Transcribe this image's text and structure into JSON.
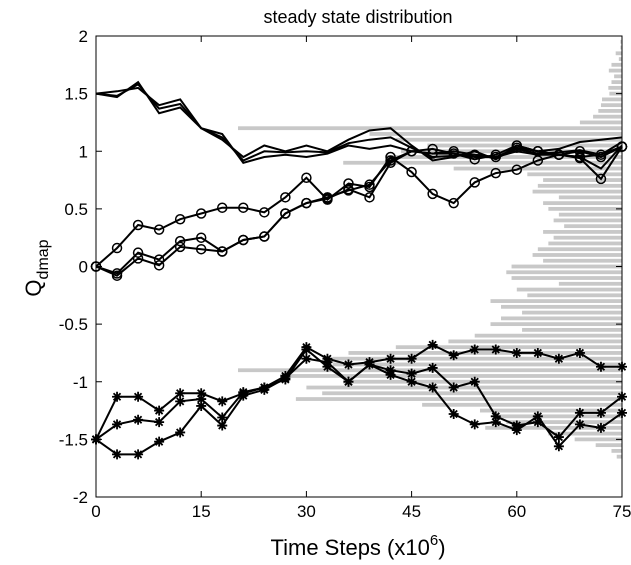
{
  "chart_data": {
    "type": "line",
    "title": "steady state distribution",
    "xlabel": {
      "base": "Time Steps (x10",
      "sup": "6",
      "tail": ")"
    },
    "ylabel": {
      "base": "Q",
      "sub": "dmap"
    },
    "xlim": [
      0,
      75
    ],
    "ylim": [
      -2,
      2
    ],
    "xticks": [
      0,
      15,
      30,
      45,
      60,
      75
    ],
    "yticks": [
      2,
      1.5,
      1,
      0.5,
      0,
      -0.5,
      -1,
      -1.5,
      -2
    ],
    "ytick_labels": [
      "2",
      "1.5",
      "1",
      "0.5",
      "0",
      "-0.5",
      "-1",
      "-1.5",
      "-2"
    ],
    "grid": false,
    "histogram": {
      "orientation": "horizontal",
      "color": "#c8c8c8",
      "y": [
        1.95,
        1.9,
        1.85,
        1.8,
        1.75,
        1.7,
        1.65,
        1.6,
        1.55,
        1.5,
        1.45,
        1.4,
        1.35,
        1.3,
        1.25,
        1.2,
        1.15,
        1.1,
        1.05,
        1.0,
        0.95,
        0.9,
        0.85,
        0.8,
        0.75,
        0.7,
        0.65,
        0.6,
        0.55,
        0.5,
        0.45,
        0.4,
        0.35,
        0.3,
        0.25,
        0.2,
        0.15,
        0.1,
        0.05,
        0.0,
        -0.05,
        -0.1,
        -0.15,
        -0.2,
        -0.25,
        -0.3,
        -0.35,
        -0.4,
        -0.45,
        -0.5,
        -0.55,
        -0.6,
        -0.65,
        -0.7,
        -0.75,
        -0.8,
        -0.85,
        -0.9,
        -0.95,
        -1.0,
        -1.05,
        -1.1,
        -1.15,
        -1.2,
        -1.25,
        -1.3,
        -1.35,
        -1.4,
        -1.45,
        -1.5,
        -1.55,
        -1.6,
        -1.65
      ],
      "counts": [
        0.3,
        0.3,
        1.2,
        0.6,
        2,
        2.5,
        1.5,
        2,
        2.6,
        2.4,
        3.8,
        4,
        4.5,
        5.5,
        8,
        73,
        48,
        43,
        37,
        42,
        45,
        53,
        32,
        18,
        15,
        16,
        17,
        12,
        15,
        14,
        12,
        13,
        11,
        15,
        13,
        14,
        16,
        17,
        15,
        21,
        22,
        21,
        12,
        20,
        18,
        25,
        23,
        19,
        23,
        25,
        19,
        28,
        33,
        43,
        52,
        55,
        55,
        73,
        65,
        53,
        60,
        57,
        62,
        38,
        27,
        24,
        22,
        26,
        14,
        9,
        5,
        2,
        1
      ]
    },
    "series": [
      {
        "marker": "none",
        "x": [
          0,
          3,
          6,
          9,
          12,
          15,
          18,
          21,
          24,
          27,
          30,
          33,
          36,
          39,
          42,
          45,
          48,
          51,
          54,
          57,
          60,
          63,
          66,
          69,
          72,
          75
        ],
        "y": [
          1.5,
          1.47,
          1.6,
          1.33,
          1.38,
          1.2,
          1.15,
          0.9,
          0.95,
          0.97,
          0.95,
          0.98,
          1.05,
          1.02,
          1.05,
          1.0,
          0.98,
          0.98,
          0.95,
          0.95,
          1.0,
          0.97,
          0.97,
          0.95,
          0.85,
          1.05
        ]
      },
      {
        "marker": "none",
        "x": [
          0,
          3,
          6,
          9,
          12,
          15,
          18,
          21,
          24,
          27,
          30,
          33,
          36,
          39,
          42,
          45,
          48,
          51,
          54,
          57,
          60,
          63,
          66,
          69,
          72,
          75
        ],
        "y": [
          1.5,
          1.52,
          1.55,
          1.4,
          1.45,
          1.2,
          1.1,
          0.95,
          1.05,
          1.0,
          1.05,
          1.0,
          1.1,
          1.18,
          1.2,
          1.05,
          0.92,
          0.95,
          1.0,
          0.93,
          1.05,
          1.0,
          1.02,
          1.08,
          1.1,
          1.12
        ]
      },
      {
        "marker": "none",
        "x": [
          0,
          3,
          6,
          9,
          12,
          15,
          18,
          21,
          24,
          27,
          30,
          33,
          36,
          39,
          42,
          45,
          48,
          51,
          54,
          57,
          60,
          63,
          66,
          69,
          72,
          75
        ],
        "y": [
          1.5,
          1.48,
          1.58,
          1.37,
          1.41,
          1.2,
          1.12,
          0.92,
          1.0,
          0.99,
          1.0,
          0.99,
          1.07,
          1.1,
          1.12,
          1.03,
          0.95,
          0.96,
          0.97,
          0.94,
          1.02,
          0.98,
          0.99,
          1.01,
          0.97,
          1.08
        ]
      },
      {
        "marker": "circle",
        "x": [
          0,
          3,
          6,
          9,
          12,
          15,
          18,
          21,
          24,
          27,
          30,
          33,
          36,
          39,
          42,
          45,
          48,
          51,
          54,
          57,
          60,
          63,
          66,
          69,
          72,
          75
        ],
        "y": [
          0.0,
          0.16,
          0.36,
          0.32,
          0.41,
          0.46,
          0.51,
          0.51,
          0.47,
          0.6,
          0.77,
          0.58,
          0.72,
          0.69,
          0.95,
          0.82,
          0.63,
          0.55,
          0.73,
          0.81,
          0.84,
          0.92,
          0.97,
          0.94,
          0.76,
          1.04
        ]
      },
      {
        "marker": "circle",
        "x": [
          0,
          3,
          6,
          9,
          12,
          15,
          18,
          21,
          24,
          27,
          30,
          33,
          36,
          39,
          42,
          45,
          48,
          51,
          54,
          57,
          60,
          63,
          66,
          69,
          72,
          75
        ],
        "y": [
          0.0,
          -0.06,
          0.12,
          0.06,
          0.22,
          0.25,
          0.13,
          0.23,
          0.26,
          0.46,
          0.55,
          0.6,
          0.66,
          0.71,
          0.92,
          1.0,
          0.98,
          1.0,
          0.97,
          0.95,
          1.03,
          1.0,
          0.97,
          0.95,
          0.97,
          1.04
        ]
      },
      {
        "marker": "circle",
        "x": [
          0,
          3,
          6,
          9,
          12,
          15,
          18,
          21,
          24,
          27,
          30,
          33,
          36,
          39,
          42,
          45,
          48,
          51,
          54,
          57,
          60,
          63,
          66,
          69,
          72,
          75
        ],
        "y": [
          0.0,
          -0.08,
          0.07,
          0.01,
          0.17,
          0.15,
          0.13,
          0.23,
          0.26,
          0.46,
          0.55,
          0.59,
          0.67,
          0.6,
          0.9,
          1.0,
          1.02,
          0.98,
          0.93,
          0.97,
          1.05,
          1.0,
          0.97,
          1.0,
          0.95,
          1.04
        ]
      },
      {
        "marker": "star",
        "x": [
          0,
          3,
          6,
          9,
          12,
          15,
          18,
          21,
          24,
          27,
          30,
          33,
          36,
          39,
          42,
          45,
          48,
          51,
          54,
          57,
          60,
          63,
          66,
          69,
          72,
          75
        ],
        "y": [
          -1.5,
          -1.13,
          -1.13,
          -1.25,
          -1.1,
          -1.1,
          -1.17,
          -1.1,
          -1.05,
          -0.95,
          -0.7,
          -0.8,
          -0.85,
          -0.83,
          -0.8,
          -0.8,
          -0.68,
          -0.77,
          -0.72,
          -0.72,
          -0.75,
          -0.75,
          -0.8,
          -0.75,
          -0.87,
          -0.87
        ]
      },
      {
        "marker": "star",
        "x": [
          0,
          3,
          6,
          9,
          12,
          15,
          18,
          21,
          24,
          27,
          30,
          33,
          36,
          39,
          42,
          45,
          48,
          51,
          54,
          57,
          60,
          63,
          66,
          69,
          72,
          75
        ],
        "y": [
          -1.5,
          -1.37,
          -1.33,
          -1.35,
          -1.17,
          -1.15,
          -1.31,
          -1.09,
          -1.05,
          -0.98,
          -0.72,
          -0.87,
          -1.0,
          -0.85,
          -0.9,
          -0.93,
          -0.88,
          -1.05,
          -1.0,
          -1.3,
          -1.38,
          -1.35,
          -1.48,
          -1.27,
          -1.27,
          -1.13
        ]
      },
      {
        "marker": "star",
        "x": [
          0,
          3,
          6,
          9,
          12,
          15,
          18,
          21,
          24,
          27,
          30,
          33,
          36,
          39,
          42,
          45,
          48,
          51,
          54,
          57,
          60,
          63,
          66,
          69,
          72,
          75
        ],
        "y": [
          -1.5,
          -1.63,
          -1.63,
          -1.52,
          -1.44,
          -1.21,
          -1.38,
          -1.12,
          -1.07,
          -0.97,
          -0.8,
          -0.83,
          -1.0,
          -0.85,
          -0.94,
          -1.0,
          -1.05,
          -1.28,
          -1.37,
          -1.35,
          -1.42,
          -1.3,
          -1.56,
          -1.37,
          -1.4,
          -1.27
        ]
      }
    ]
  }
}
